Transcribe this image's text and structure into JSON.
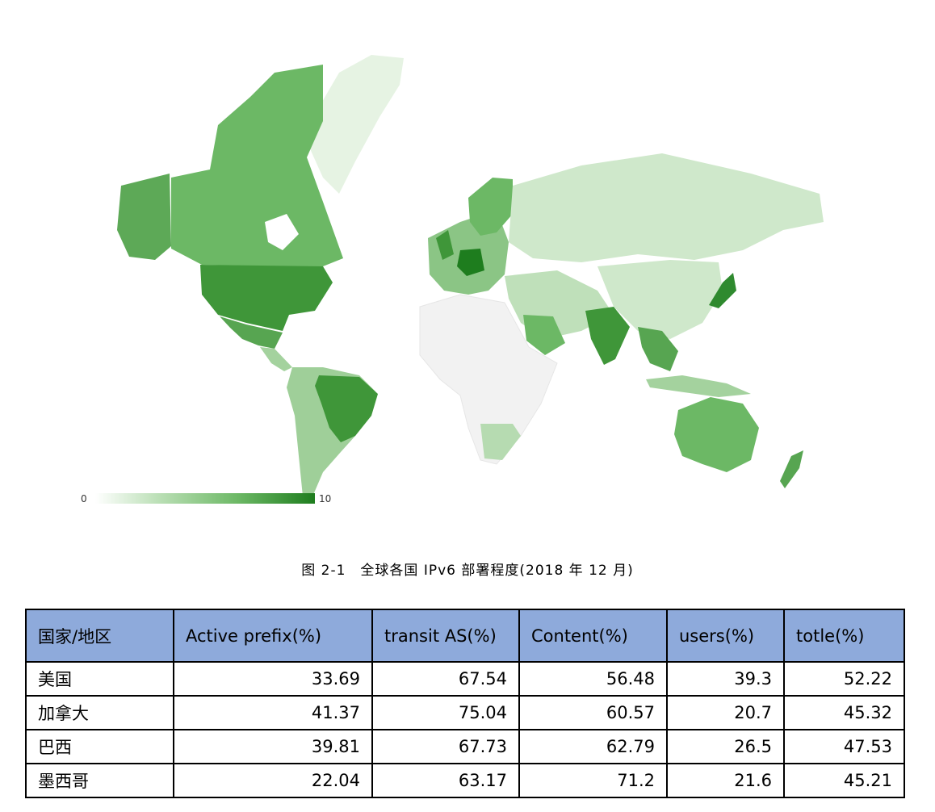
{
  "figure": {
    "legend": {
      "min_label": "0",
      "max_label": "10"
    },
    "caption": "图 2-1　全球各国 IPv6 部署程度(2018 年 12 月)"
  },
  "table": {
    "headers": [
      "国家/地区",
      "Active prefix(%)",
      "transit AS(%)",
      "Content(%)",
      "users(%)",
      "totle(%)"
    ],
    "rows": [
      {
        "name": "美国",
        "values": [
          "33.69",
          "67.54",
          "56.48",
          "39.3",
          "52.22"
        ]
      },
      {
        "name": "加拿大",
        "values": [
          "41.37",
          "75.04",
          "60.57",
          "20.7",
          "45.32"
        ]
      },
      {
        "name": "巴西",
        "values": [
          "39.81",
          "67.73",
          "62.79",
          "26.5",
          "47.53"
        ]
      },
      {
        "name": "墨西哥",
        "values": [
          "22.04",
          "63.17",
          "71.2",
          "21.6",
          "45.21"
        ]
      }
    ]
  }
}
